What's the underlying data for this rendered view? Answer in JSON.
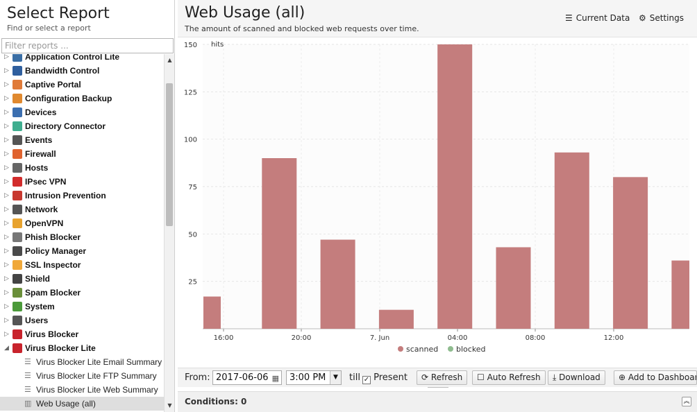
{
  "left": {
    "title": "Select Report",
    "subtitle": "Find or select a report",
    "filter_placeholder": "Filter reports ...",
    "items": [
      {
        "label": "Application Control Lite",
        "color": "#3a6ea5",
        "expanded": false
      },
      {
        "label": "Bandwidth Control",
        "color": "#2f5f9e",
        "expanded": false
      },
      {
        "label": "Captive Portal",
        "color": "#e07b39",
        "expanded": false
      },
      {
        "label": "Configuration Backup",
        "color": "#e0892f",
        "expanded": false
      },
      {
        "label": "Devices",
        "color": "#3c6fb0",
        "expanded": false
      },
      {
        "label": "Directory Connector",
        "color": "#3fae8f",
        "expanded": false
      },
      {
        "label": "Events",
        "color": "#555555",
        "expanded": false
      },
      {
        "label": "Firewall",
        "color": "#e0632f",
        "expanded": false
      },
      {
        "label": "Hosts",
        "color": "#666666",
        "expanded": false
      },
      {
        "label": "IPsec VPN",
        "color": "#d22c2c",
        "expanded": false
      },
      {
        "label": "Intrusion Prevention",
        "color": "#c8382f",
        "expanded": false
      },
      {
        "label": "Network",
        "color": "#555555",
        "expanded": false
      },
      {
        "label": "OpenVPN",
        "color": "#e8a32f",
        "expanded": false
      },
      {
        "label": "Phish Blocker",
        "color": "#777777",
        "expanded": false
      },
      {
        "label": "Policy Manager",
        "color": "#4a4a4a",
        "expanded": false
      },
      {
        "label": "SSL Inspector",
        "color": "#f0a83a",
        "expanded": false
      },
      {
        "label": "Shield",
        "color": "#444444",
        "expanded": false
      },
      {
        "label": "Spam Blocker",
        "color": "#6a8f3a",
        "expanded": false
      },
      {
        "label": "System",
        "color": "#4b9a3a",
        "expanded": false
      },
      {
        "label": "Users",
        "color": "#555555",
        "expanded": false
      },
      {
        "label": "Virus Blocker",
        "color": "#c8232c",
        "expanded": false
      },
      {
        "label": "Virus Blocker Lite",
        "color": "#c8232c",
        "expanded": true
      }
    ],
    "children": [
      {
        "label": "Virus Blocker Lite Email Summary",
        "icon": "list-icon"
      },
      {
        "label": "Virus Blocker Lite FTP Summary",
        "icon": "list-icon"
      },
      {
        "label": "Virus Blocker Lite Web Summary",
        "icon": "list-icon"
      },
      {
        "label": "Web Usage (all)",
        "icon": "bar-chart-icon",
        "selected": true
      }
    ]
  },
  "main": {
    "title": "Web Usage (all)",
    "description": "The amount of scanned and blocked web requests over time.",
    "current_data_label": "Current Data",
    "settings_label": "Settings"
  },
  "chart_data": {
    "type": "bar",
    "ylabel": "hits",
    "ylim": [
      0,
      150
    ],
    "yticks": [
      25,
      50,
      75,
      100,
      125,
      150
    ],
    "xticks": [
      "16:00",
      "20:00",
      "7. Jun",
      "04:00",
      "08:00",
      "12:00"
    ],
    "grid": true,
    "legend_position": "bottom",
    "series": [
      {
        "name": "scanned",
        "color": "#c47d7d",
        "values": [
          17,
          90,
          47,
          10,
          150,
          43,
          93,
          80,
          36
        ]
      },
      {
        "name": "blocked",
        "color": "#8fbc8f",
        "values": [
          0,
          0,
          0,
          0,
          0,
          0,
          0,
          0,
          0
        ]
      }
    ]
  },
  "toolbar": {
    "from_label": "From:",
    "from_date": "2017-06-06",
    "from_time": "3:00 PM",
    "till_label": "till",
    "present_label": "Present",
    "present_checked": true,
    "refresh_label": "Refresh",
    "auto_refresh_label": "Auto Refresh",
    "download_label": "Download",
    "add_dashboard_label": "Add to Dashboard"
  },
  "conditions": {
    "label": "Conditions: 0"
  }
}
